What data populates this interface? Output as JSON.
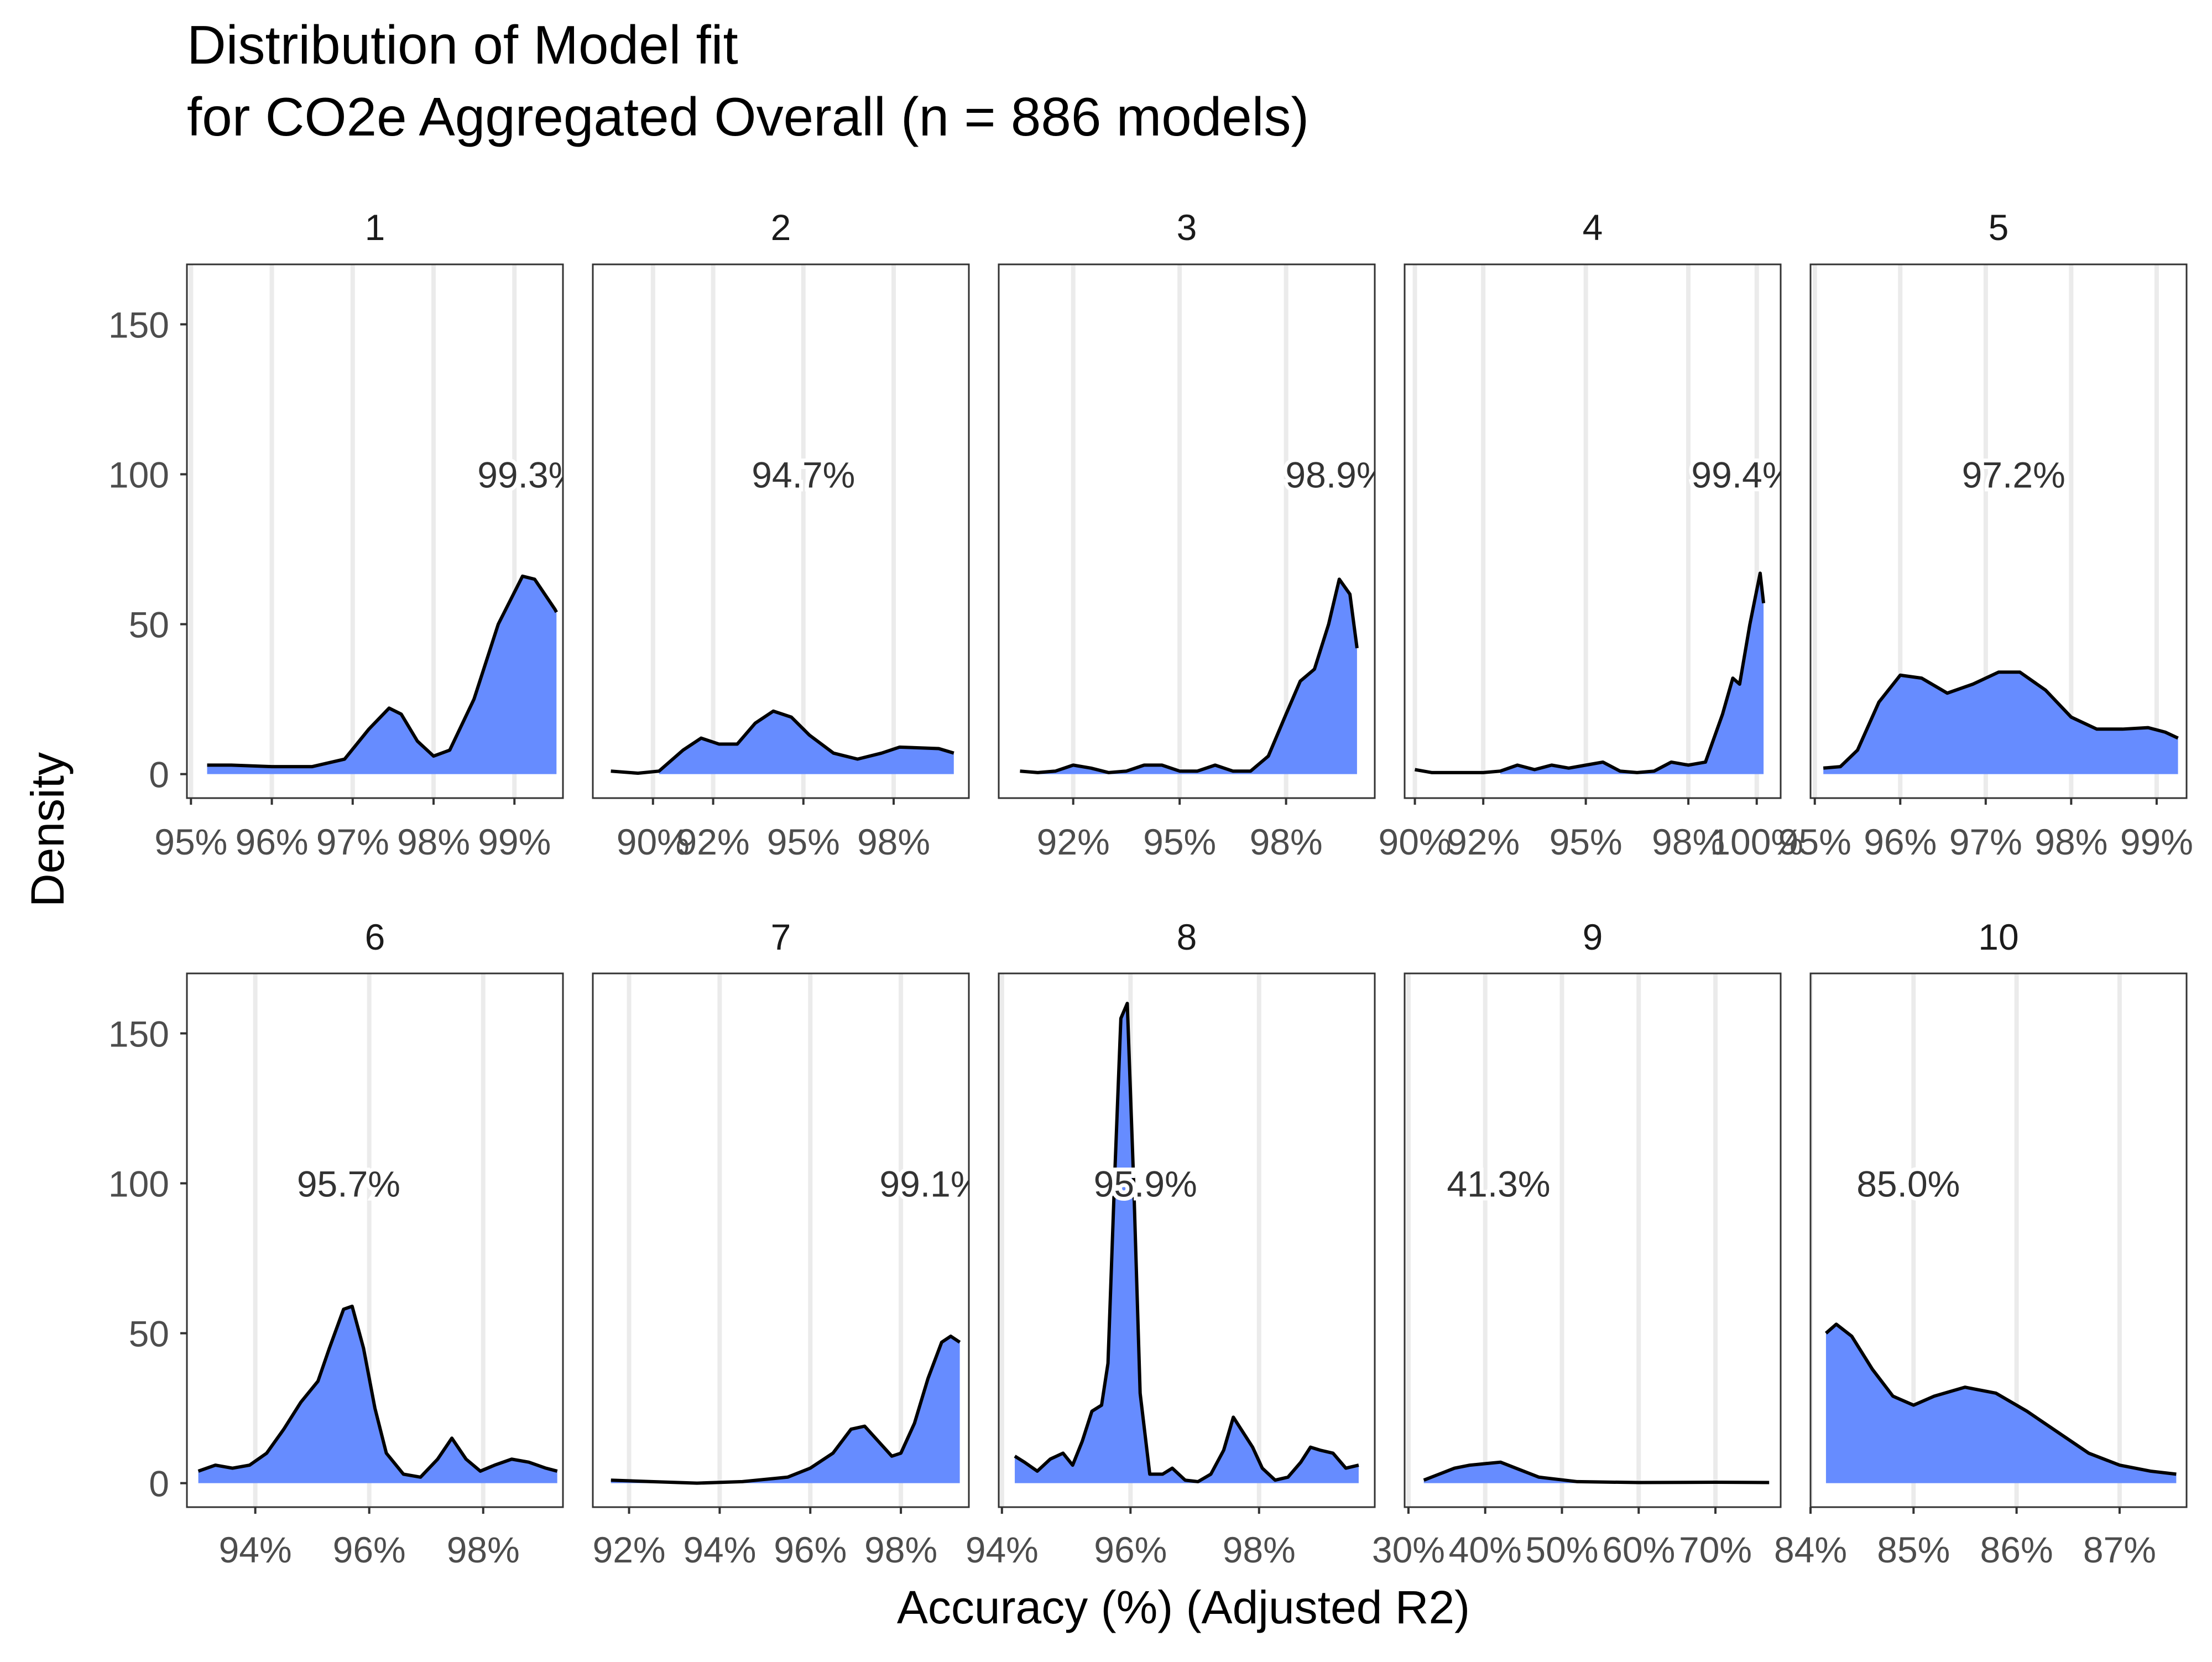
{
  "chart_data": {
    "type": "area",
    "title_line1": "Distribution of Model fit",
    "title_line2": "for CO2e Aggregated Overall (n = 886 models)",
    "xlabel": "Accuracy (%) (Adjusted R2)",
    "ylabel": "Density",
    "ylim": [
      -8,
      170
    ],
    "y_ticks": [
      0,
      50,
      100,
      150
    ],
    "fill_color": "#668CFF",
    "line_color": "#000000",
    "grid": "vertical major lines",
    "panels": [
      {
        "label": "1",
        "annotation": "99.3%",
        "xlim": [
          94.95,
          99.6
        ],
        "x_ticks": [
          95,
          96,
          97,
          98,
          99
        ],
        "x_tick_labels": [
          "95%",
          "96%",
          "97%",
          "98%",
          "99%"
        ],
        "fill_start": 95.2,
        "curve": [
          [
            95.2,
            3
          ],
          [
            95.5,
            3
          ],
          [
            96.0,
            2.5
          ],
          [
            96.5,
            2.5
          ],
          [
            96.9,
            5
          ],
          [
            97.2,
            15
          ],
          [
            97.45,
            22
          ],
          [
            97.6,
            20
          ],
          [
            97.8,
            11
          ],
          [
            98.0,
            6
          ],
          [
            98.2,
            8
          ],
          [
            98.5,
            25
          ],
          [
            98.8,
            50
          ],
          [
            99.1,
            66
          ],
          [
            99.25,
            65
          ],
          [
            99.5,
            55
          ],
          [
            99.52,
            54
          ]
        ]
      },
      {
        "label": "2",
        "annotation": "94.7%",
        "xlim": [
          88.0,
          100.5
        ],
        "x_ticks": [
          90,
          92,
          95,
          98
        ],
        "x_tick_labels": [
          "90%",
          "92%",
          "95%",
          "98%"
        ],
        "fill_start": 90.2,
        "curve": [
          [
            88.6,
            1
          ],
          [
            89.5,
            0.3
          ],
          [
            90.2,
            1
          ],
          [
            91.0,
            8
          ],
          [
            91.6,
            12
          ],
          [
            92.2,
            10
          ],
          [
            92.8,
            10
          ],
          [
            93.4,
            17
          ],
          [
            94.0,
            21
          ],
          [
            94.6,
            19
          ],
          [
            95.2,
            13
          ],
          [
            96.0,
            7
          ],
          [
            96.8,
            5
          ],
          [
            97.6,
            7
          ],
          [
            98.2,
            9
          ],
          [
            99.5,
            8.5
          ],
          [
            100.0,
            7
          ]
        ]
      },
      {
        "label": "3",
        "annotation": "98.9%",
        "xlim": [
          89.9,
          100.5
        ],
        "x_ticks": [
          92,
          95,
          98
        ],
        "x_tick_labels": [
          "92%",
          "95%",
          "98%"
        ],
        "fill_start": 91.0,
        "curve": [
          [
            90.5,
            1
          ],
          [
            91.0,
            0.5
          ],
          [
            91.5,
            1
          ],
          [
            92.0,
            3
          ],
          [
            92.5,
            2
          ],
          [
            93.0,
            0.5
          ],
          [
            93.5,
            1
          ],
          [
            94.0,
            3
          ],
          [
            94.5,
            3
          ],
          [
            95.0,
            1
          ],
          [
            95.5,
            1
          ],
          [
            96.0,
            3
          ],
          [
            96.5,
            1
          ],
          [
            97.0,
            1
          ],
          [
            97.5,
            6
          ],
          [
            98.0,
            20
          ],
          [
            98.4,
            31
          ],
          [
            98.8,
            35
          ],
          [
            99.2,
            50
          ],
          [
            99.5,
            65
          ],
          [
            99.8,
            60
          ],
          [
            100.0,
            42
          ]
        ]
      },
      {
        "label": "4",
        "annotation": "99.4%",
        "xlim": [
          89.7,
          100.7
        ],
        "x_ticks": [
          90,
          92,
          95,
          98,
          100
        ],
        "x_tick_labels": [
          "90%",
          "92%",
          "95%",
          "98%",
          "100%"
        ],
        "fill_start": 92.5,
        "curve": [
          [
            90.0,
            1.5
          ],
          [
            90.5,
            0.5
          ],
          [
            92.0,
            0.5
          ],
          [
            92.5,
            1
          ],
          [
            93.0,
            3
          ],
          [
            93.5,
            1.5
          ],
          [
            94.0,
            3
          ],
          [
            94.5,
            2
          ],
          [
            95.0,
            3
          ],
          [
            95.5,
            4
          ],
          [
            96.0,
            1
          ],
          [
            96.5,
            0.5
          ],
          [
            97.0,
            1
          ],
          [
            97.5,
            4
          ],
          [
            98.0,
            3
          ],
          [
            98.5,
            4
          ],
          [
            99.0,
            20
          ],
          [
            99.3,
            32
          ],
          [
            99.5,
            30
          ],
          [
            99.8,
            50
          ],
          [
            100.1,
            67
          ],
          [
            100.2,
            57
          ]
        ]
      },
      {
        "label": "5",
        "annotation": "97.2%",
        "xlim": [
          94.95,
          99.35
        ],
        "x_ticks": [
          95,
          96,
          97,
          98,
          99
        ],
        "x_tick_labels": [
          "95%",
          "96%",
          "97%",
          "98%",
          "99%"
        ],
        "fill_start": 95.1,
        "curve": [
          [
            95.1,
            2
          ],
          [
            95.3,
            2.5
          ],
          [
            95.5,
            8
          ],
          [
            95.75,
            24
          ],
          [
            96.0,
            33
          ],
          [
            96.25,
            32
          ],
          [
            96.55,
            27
          ],
          [
            96.85,
            30
          ],
          [
            97.15,
            34
          ],
          [
            97.4,
            34
          ],
          [
            97.7,
            28
          ],
          [
            98.0,
            19
          ],
          [
            98.3,
            15
          ],
          [
            98.6,
            15
          ],
          [
            98.9,
            15.5
          ],
          [
            99.1,
            14
          ],
          [
            99.25,
            12
          ]
        ]
      },
      {
        "label": "6",
        "annotation": "95.7%",
        "xlim": [
          92.8,
          99.4
        ],
        "x_ticks": [
          94,
          96,
          98
        ],
        "x_tick_labels": [
          "94%",
          "96%",
          "98%"
        ],
        "fill_start": 93.0,
        "curve": [
          [
            93.0,
            4
          ],
          [
            93.3,
            6
          ],
          [
            93.6,
            5
          ],
          [
            93.9,
            6
          ],
          [
            94.2,
            10
          ],
          [
            94.5,
            18
          ],
          [
            94.8,
            27
          ],
          [
            95.1,
            34
          ],
          [
            95.3,
            45
          ],
          [
            95.55,
            58
          ],
          [
            95.7,
            59
          ],
          [
            95.9,
            45
          ],
          [
            96.1,
            25
          ],
          [
            96.3,
            10
          ],
          [
            96.6,
            3
          ],
          [
            96.9,
            2
          ],
          [
            97.2,
            8
          ],
          [
            97.45,
            15
          ],
          [
            97.7,
            8
          ],
          [
            97.95,
            4
          ],
          [
            98.2,
            6
          ],
          [
            98.5,
            8
          ],
          [
            98.8,
            7
          ],
          [
            99.1,
            5
          ],
          [
            99.3,
            4
          ]
        ]
      },
      {
        "label": "7",
        "annotation": "99.1%",
        "xlim": [
          91.2,
          99.5
        ],
        "x_ticks": [
          92,
          94,
          96,
          98
        ],
        "x_tick_labels": [
          "92%",
          "94%",
          "96%",
          "98%"
        ],
        "fill_start": 91.6,
        "curve": [
          [
            91.6,
            1
          ],
          [
            92.5,
            0.5
          ],
          [
            93.5,
            0
          ],
          [
            94.5,
            0.5
          ],
          [
            95.5,
            2
          ],
          [
            96.0,
            5
          ],
          [
            96.5,
            10
          ],
          [
            96.9,
            18
          ],
          [
            97.2,
            19
          ],
          [
            97.5,
            14
          ],
          [
            97.8,
            9
          ],
          [
            98.0,
            10
          ],
          [
            98.3,
            20
          ],
          [
            98.6,
            35
          ],
          [
            98.9,
            47
          ],
          [
            99.1,
            49
          ],
          [
            99.3,
            47
          ]
        ]
      },
      {
        "label": "8",
        "annotation": "95.9%",
        "xlim": [
          93.95,
          99.8
        ],
        "x_ticks": [
          94,
          96,
          98
        ],
        "x_tick_labels": [
          "94%",
          "96%",
          "98%"
        ],
        "fill_start": 94.2,
        "curve": [
          [
            94.2,
            9
          ],
          [
            94.35,
            7
          ],
          [
            94.55,
            4
          ],
          [
            94.75,
            8
          ],
          [
            94.95,
            10
          ],
          [
            95.1,
            6
          ],
          [
            95.25,
            14
          ],
          [
            95.4,
            24
          ],
          [
            95.55,
            26
          ],
          [
            95.65,
            40
          ],
          [
            95.75,
            100
          ],
          [
            95.85,
            155
          ],
          [
            95.95,
            160
          ],
          [
            96.05,
            100
          ],
          [
            96.15,
            30
          ],
          [
            96.3,
            3
          ],
          [
            96.5,
            3
          ],
          [
            96.65,
            5
          ],
          [
            96.85,
            1
          ],
          [
            97.05,
            0.5
          ],
          [
            97.25,
            3
          ],
          [
            97.45,
            11
          ],
          [
            97.6,
            22
          ],
          [
            97.75,
            17
          ],
          [
            97.9,
            12
          ],
          [
            98.05,
            5
          ],
          [
            98.25,
            1
          ],
          [
            98.45,
            2
          ],
          [
            98.65,
            7
          ],
          [
            98.8,
            12
          ],
          [
            98.95,
            11
          ],
          [
            99.15,
            10
          ],
          [
            99.35,
            5
          ],
          [
            99.55,
            6
          ]
        ]
      },
      {
        "label": "9",
        "annotation": "41.3%",
        "xlim": [
          29.5,
          78.5
        ],
        "x_ticks": [
          30,
          40,
          50,
          60,
          70
        ],
        "x_tick_labels": [
          "30%",
          "40%",
          "50%",
          "60%",
          "70%"
        ],
        "fill_start": 32.0,
        "curve": [
          [
            32.0,
            1
          ],
          [
            34.0,
            3
          ],
          [
            36.0,
            5
          ],
          [
            38.0,
            6
          ],
          [
            40.0,
            6.5
          ],
          [
            42.0,
            7
          ],
          [
            44.0,
            5
          ],
          [
            47.0,
            2
          ],
          [
            52.0,
            0.5
          ],
          [
            60.0,
            0.2
          ],
          [
            70.0,
            0.3
          ],
          [
            77.0,
            0.2
          ]
        ]
      },
      {
        "label": "10",
        "annotation": "85.0%",
        "xlim": [
          84.0,
          87.65
        ],
        "x_ticks": [
          84,
          85,
          86,
          87
        ],
        "x_tick_labels": [
          "84%",
          "85%",
          "86%",
          "87%"
        ],
        "fill_start": 84.15,
        "curve": [
          [
            84.15,
            50
          ],
          [
            84.25,
            53
          ],
          [
            84.4,
            49
          ],
          [
            84.6,
            38
          ],
          [
            84.8,
            29
          ],
          [
            85.0,
            26
          ],
          [
            85.2,
            29
          ],
          [
            85.5,
            32
          ],
          [
            85.8,
            30
          ],
          [
            86.1,
            24
          ],
          [
            86.4,
            17
          ],
          [
            86.7,
            10
          ],
          [
            87.0,
            6
          ],
          [
            87.3,
            4
          ],
          [
            87.55,
            3
          ]
        ]
      }
    ]
  }
}
